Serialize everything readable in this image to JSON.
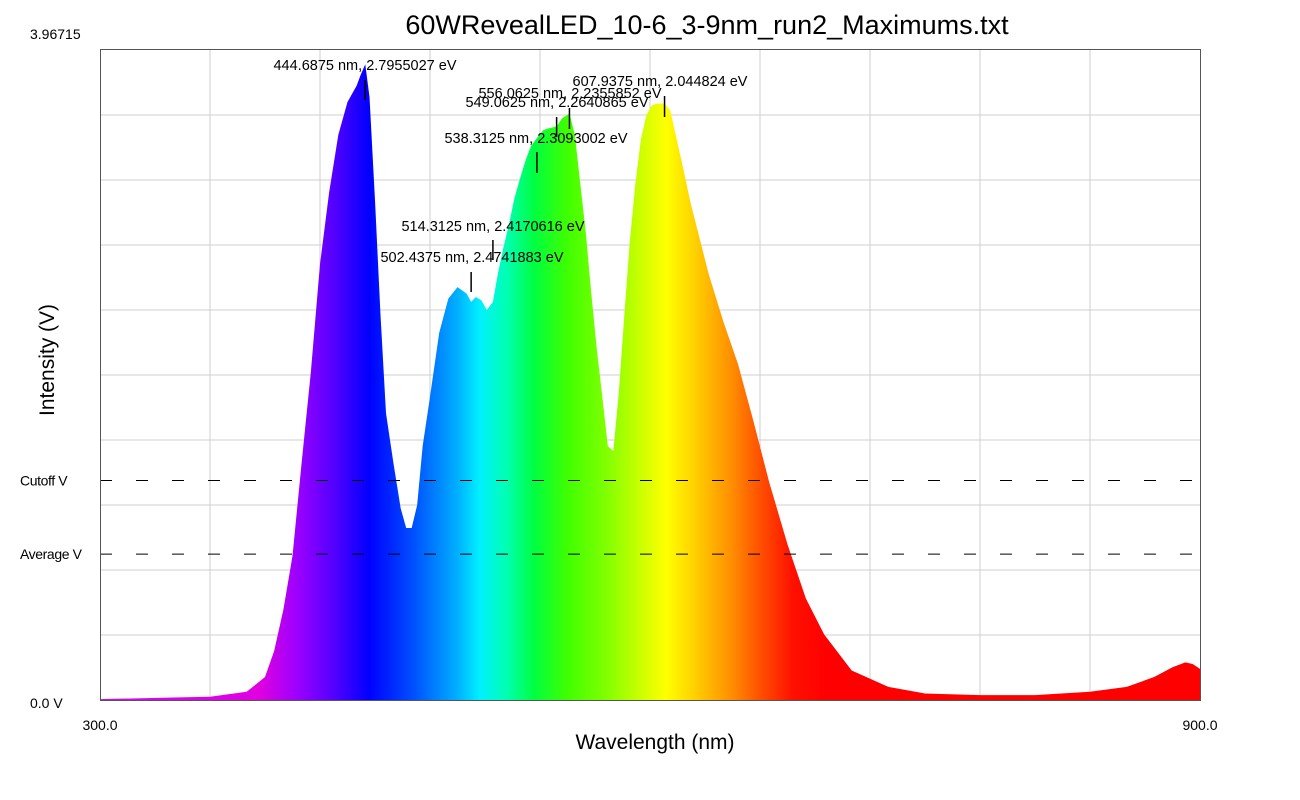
{
  "chart_data": {
    "type": "area",
    "title": "60WRevealLED_10-6_3-9nm_run2_Maximums.txt",
    "xlabel": "Wavelength (nm)",
    "ylabel": "Intensity (V)",
    "xlim": [
      300.0,
      900.0
    ],
    "ylim": [
      0.0,
      3.96715
    ],
    "x_tick_labels": [
      "300.0",
      "900.0"
    ],
    "y_tick_labels": [
      "0.0 V",
      "3.96715"
    ],
    "grid": true,
    "fill": "visible-spectrum gradient by wavelength",
    "reference_lines": [
      {
        "label": "Cutoff V",
        "y": 1.34
      },
      {
        "label": "Average V",
        "y": 0.89
      }
    ],
    "series": [
      {
        "x": [
          300,
          320,
          340,
          360,
          380,
          390,
          395,
          400,
          405,
          410,
          415,
          420,
          425,
          430,
          435,
          440,
          442,
          444.69,
          447,
          450,
          453,
          456,
          460,
          464,
          467,
          470,
          473,
          476,
          480,
          485,
          490,
          495,
          500,
          502.44,
          505,
          508,
          511,
          514.31,
          517,
          520,
          523,
          526,
          529,
          532,
          535,
          538.31,
          542,
          545,
          549.06,
          552,
          556.06,
          559,
          562,
          565,
          568,
          571,
          574,
          577,
          580,
          583,
          586,
          589,
          592,
          595,
          598,
          601,
          604,
          607.94,
          611,
          614,
          618,
          622,
          627,
          632,
          640,
          648,
          656,
          665,
          675,
          685,
          695,
          710,
          730,
          750,
          780,
          810,
          840,
          860,
          875,
          885,
          892,
          896,
          900
        ],
        "y": [
          0.005,
          0.01,
          0.015,
          0.02,
          0.05,
          0.14,
          0.3,
          0.55,
          0.88,
          1.45,
          2.0,
          2.66,
          3.1,
          3.45,
          3.65,
          3.75,
          3.81,
          3.88,
          3.68,
          3.05,
          2.35,
          1.75,
          1.45,
          1.17,
          1.05,
          1.05,
          1.19,
          1.55,
          1.85,
          2.24,
          2.45,
          2.52,
          2.48,
          2.43,
          2.46,
          2.44,
          2.38,
          2.43,
          2.6,
          2.76,
          2.9,
          3.06,
          3.18,
          3.29,
          3.38,
          3.43,
          3.48,
          3.49,
          3.5,
          3.55,
          3.58,
          3.45,
          3.15,
          2.85,
          2.48,
          2.14,
          1.85,
          1.55,
          1.52,
          1.88,
          2.35,
          2.8,
          3.15,
          3.42,
          3.57,
          3.63,
          3.64,
          3.64,
          3.6,
          3.45,
          3.25,
          3.04,
          2.82,
          2.6,
          2.31,
          2.05,
          1.72,
          1.33,
          0.95,
          0.62,
          0.4,
          0.18,
          0.08,
          0.04,
          0.03,
          0.03,
          0.05,
          0.08,
          0.14,
          0.2,
          0.23,
          0.22,
          0.19
        ]
      }
    ],
    "annotations": [
      {
        "text": "444.6875 nm, 2.7955027 eV",
        "x": 444.6875,
        "y": 3.88
      },
      {
        "text": "502.4375 nm, 2.4741883 eV",
        "x": 502.4375,
        "y": 2.43
      },
      {
        "text": "514.3125 nm, 2.4170616 eV",
        "x": 514.3125,
        "y": 2.43
      },
      {
        "text": "538.3125 nm, 2.3093002 eV",
        "x": 538.3125,
        "y": 3.43
      },
      {
        "text": "549.0625 nm, 2.2640865 eV",
        "x": 549.0625,
        "y": 3.5
      },
      {
        "text": "556.0625 nm, 2.2355852 eV",
        "x": 556.0625,
        "y": 3.58
      },
      {
        "text": "607.9375 nm, 2.044824 eV",
        "x": 607.9375,
        "y": 3.64
      }
    ]
  }
}
